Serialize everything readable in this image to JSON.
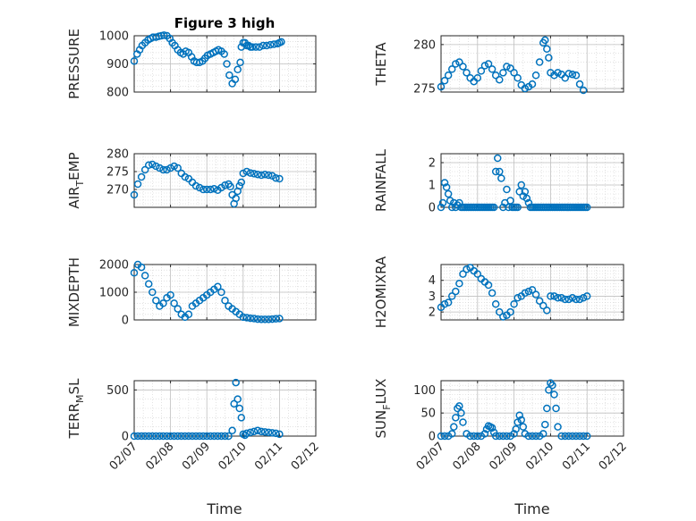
{
  "figure": {
    "title": "Figure 3 high",
    "xlabel": "Time"
  },
  "colors": {
    "marker": "#0072BD",
    "axis": "#262626",
    "grid": "#bfbfbf"
  },
  "chart_data": [
    {
      "type": "scatter",
      "ylabel": "PRESSURE",
      "ylim": [
        800,
        1000
      ],
      "yticks": [
        800,
        900,
        1000
      ],
      "xlim": [
        0,
        5
      ],
      "xtick_labels": [
        "02/07",
        "02/08",
        "02/09",
        "02/10",
        "02/11",
        "02/12"
      ],
      "grid": true,
      "minor_grid": true,
      "x": [
        0.0,
        0.08,
        0.15,
        0.22,
        0.3,
        0.38,
        0.45,
        0.52,
        0.6,
        0.68,
        0.75,
        0.82,
        0.9,
        0.98,
        1.05,
        1.12,
        1.2,
        1.28,
        1.35,
        1.42,
        1.5,
        1.58,
        1.65,
        1.72,
        1.8,
        1.88,
        1.95,
        2.02,
        2.1,
        2.18,
        2.25,
        2.32,
        2.4,
        2.48,
        2.55,
        2.62,
        2.7,
        2.78,
        2.85,
        2.92,
        2.95,
        3.0,
        3.05,
        3.1,
        3.15,
        3.2,
        3.25,
        3.35,
        3.45,
        3.55,
        3.65,
        3.75,
        3.85,
        3.95,
        4.0,
        4.05
      ],
      "y": [
        910,
        935,
        950,
        965,
        975,
        985,
        990,
        995,
        995,
        998,
        1000,
        1002,
        1000,
        990,
        975,
        965,
        950,
        940,
        935,
        945,
        940,
        925,
        910,
        905,
        905,
        910,
        920,
        930,
        935,
        940,
        945,
        950,
        945,
        935,
        900,
        860,
        830,
        845,
        880,
        905,
        960,
        975,
        975,
        965,
        965,
        960,
        960,
        960,
        960,
        965,
        965,
        968,
        970,
        972,
        975,
        978
      ]
    },
    {
      "type": "scatter",
      "ylabel": "THETA",
      "ylim": [
        274.6,
        281
      ],
      "yticks": [
        275,
        280
      ],
      "xlim": [
        0,
        5
      ],
      "xtick_labels": [
        "02/07",
        "02/08",
        "02/09",
        "02/10",
        "02/11",
        "02/12"
      ],
      "grid": true,
      "minor_grid": true,
      "x": [
        0.0,
        0.1,
        0.2,
        0.3,
        0.4,
        0.5,
        0.6,
        0.7,
        0.8,
        0.9,
        1.0,
        1.1,
        1.2,
        1.3,
        1.4,
        1.5,
        1.6,
        1.7,
        1.8,
        1.9,
        2.0,
        2.1,
        2.2,
        2.3,
        2.4,
        2.5,
        2.6,
        2.7,
        2.8,
        2.85,
        2.9,
        2.95,
        3.0,
        3.1,
        3.2,
        3.3,
        3.4,
        3.5,
        3.6,
        3.7,
        3.8,
        3.9
      ],
      "y": [
        275.2,
        275.9,
        276.5,
        277.2,
        277.8,
        278.0,
        277.5,
        276.8,
        276.2,
        275.8,
        276.2,
        277.0,
        277.6,
        277.8,
        277.2,
        276.5,
        276.0,
        276.8,
        277.5,
        277.3,
        276.8,
        276.2,
        275.4,
        275.0,
        275.2,
        275.5,
        276.5,
        278.0,
        280.2,
        280.5,
        279.5,
        278.5,
        276.8,
        276.5,
        276.8,
        276.6,
        276.2,
        276.7,
        276.6,
        276.5,
        275.5,
        274.8
      ]
    },
    {
      "type": "scatter",
      "ylabel": "AIR_TEMP",
      "ylim": [
        265,
        280
      ],
      "yticks": [
        270,
        275,
        280
      ],
      "xlim": [
        0,
        5
      ],
      "xtick_labels": [
        "02/07",
        "02/08",
        "02/09",
        "02/10",
        "02/11",
        "02/12"
      ],
      "grid": true,
      "minor_grid": true,
      "x": [
        0.0,
        0.1,
        0.2,
        0.3,
        0.4,
        0.5,
        0.6,
        0.7,
        0.8,
        0.9,
        1.0,
        1.1,
        1.2,
        1.3,
        1.4,
        1.5,
        1.6,
        1.7,
        1.8,
        1.9,
        2.0,
        2.1,
        2.2,
        2.3,
        2.4,
        2.5,
        2.6,
        2.65,
        2.7,
        2.75,
        2.8,
        2.85,
        2.9,
        2.95,
        3.0,
        3.1,
        3.2,
        3.3,
        3.4,
        3.5,
        3.6,
        3.7,
        3.8,
        3.9,
        4.0
      ],
      "y": [
        268.5,
        271.5,
        273.5,
        275.5,
        276.8,
        277.0,
        276.5,
        276.0,
        275.5,
        275.5,
        276.0,
        276.5,
        276.0,
        274.5,
        273.5,
        273.0,
        272.0,
        271.0,
        270.5,
        270.0,
        270.0,
        270.0,
        270.2,
        269.8,
        270.5,
        271.2,
        271.5,
        270.8,
        268.5,
        266.0,
        267.5,
        269.5,
        271.0,
        272.0,
        274.5,
        275.0,
        274.6,
        274.4,
        274.2,
        274.0,
        274.2,
        274.0,
        273.8,
        273.2,
        273.0
      ]
    },
    {
      "type": "scatter",
      "ylabel": "RAINFALL",
      "ylim": [
        0,
        2.4
      ],
      "yticks": [
        0,
        1,
        2
      ],
      "xlim": [
        0,
        5
      ],
      "xtick_labels": [
        "02/07",
        "02/08",
        "02/09",
        "02/10",
        "02/11",
        "02/12"
      ],
      "grid": true,
      "minor_grid": true,
      "x": [
        0.0,
        0.05,
        0.1,
        0.15,
        0.2,
        0.25,
        0.3,
        0.35,
        0.4,
        0.45,
        0.5,
        0.55,
        0.6,
        0.65,
        0.7,
        0.75,
        0.8,
        0.85,
        0.9,
        0.95,
        1.0,
        1.05,
        1.1,
        1.15,
        1.2,
        1.25,
        1.3,
        1.35,
        1.4,
        1.45,
        1.5,
        1.55,
        1.6,
        1.65,
        1.7,
        1.75,
        1.8,
        1.85,
        1.9,
        1.95,
        2.0,
        2.05,
        2.1,
        2.15,
        2.2,
        2.25,
        2.3,
        2.35,
        2.4,
        2.45,
        2.5,
        2.55,
        2.6,
        2.65,
        2.7,
        2.75,
        2.8,
        2.85,
        2.9,
        2.95,
        3.0,
        3.05,
        3.1,
        3.15,
        3.2,
        3.25,
        3.3,
        3.35,
        3.4,
        3.45,
        3.5,
        3.55,
        3.6,
        3.65,
        3.7,
        3.75,
        3.8,
        3.85,
        3.9,
        3.95,
        4.0
      ],
      "y": [
        0.0,
        0.2,
        1.1,
        0.9,
        0.6,
        0.3,
        0.0,
        0.2,
        0.0,
        0.1,
        0.2,
        0.0,
        0.0,
        0.0,
        0.0,
        0.0,
        0.0,
        0.0,
        0.0,
        0.0,
        0.0,
        0.0,
        0.0,
        0.0,
        0.0,
        0.0,
        0.0,
        0.0,
        0.0,
        0.0,
        1.6,
        2.2,
        1.6,
        1.3,
        0.0,
        0.2,
        0.8,
        0.0,
        0.3,
        0.0,
        0.0,
        0.0,
        0.0,
        0.7,
        1.0,
        0.5,
        0.7,
        0.4,
        0.2,
        0.0,
        0.0,
        0.0,
        0.0,
        0.0,
        0.0,
        0.0,
        0.0,
        0.0,
        0.0,
        0.0,
        0.0,
        0.0,
        0.0,
        0.0,
        0.0,
        0.0,
        0.0,
        0.0,
        0.0,
        0.0,
        0.0,
        0.0,
        0.0,
        0.0,
        0.0,
        0.0,
        0.0,
        0.0,
        0.0,
        0.0,
        0.0
      ]
    },
    {
      "type": "scatter",
      "ylabel": "MIXDEPTH",
      "ylim": [
        0,
        2000
      ],
      "yticks": [
        0,
        1000,
        2000
      ],
      "xlim": [
        0,
        5
      ],
      "xtick_labels": [
        "02/07",
        "02/08",
        "02/09",
        "02/10",
        "02/11",
        "02/12"
      ],
      "grid": true,
      "minor_grid": true,
      "x": [
        0.0,
        0.1,
        0.2,
        0.3,
        0.4,
        0.5,
        0.6,
        0.7,
        0.8,
        0.9,
        1.0,
        1.1,
        1.2,
        1.3,
        1.4,
        1.5,
        1.6,
        1.7,
        1.8,
        1.9,
        2.0,
        2.1,
        2.2,
        2.3,
        2.4,
        2.5,
        2.6,
        2.7,
        2.8,
        2.9,
        3.0,
        3.1,
        3.2,
        3.3,
        3.4,
        3.5,
        3.6,
        3.7,
        3.8,
        3.9,
        4.0
      ],
      "y": [
        1700,
        2000,
        1900,
        1600,
        1300,
        1000,
        700,
        500,
        600,
        800,
        900,
        600,
        400,
        200,
        100,
        200,
        500,
        600,
        700,
        800,
        900,
        1000,
        1100,
        1200,
        1000,
        700,
        500,
        400,
        300,
        200,
        100,
        80,
        60,
        50,
        30,
        20,
        20,
        20,
        30,
        40,
        50
      ]
    },
    {
      "type": "scatter",
      "ylabel": "H2OMIXRA",
      "ylim": [
        1.5,
        5
      ],
      "yticks": [
        2,
        3,
        4
      ],
      "xlim": [
        0,
        5
      ],
      "xtick_labels": [
        "02/07",
        "02/08",
        "02/09",
        "02/10",
        "02/11",
        "02/12"
      ],
      "grid": true,
      "minor_grid": true,
      "x": [
        0.0,
        0.1,
        0.2,
        0.3,
        0.4,
        0.5,
        0.6,
        0.7,
        0.8,
        0.9,
        1.0,
        1.1,
        1.2,
        1.3,
        1.4,
        1.5,
        1.6,
        1.7,
        1.8,
        1.9,
        2.0,
        2.1,
        2.2,
        2.3,
        2.4,
        2.5,
        2.6,
        2.7,
        2.8,
        2.9,
        3.0,
        3.1,
        3.2,
        3.3,
        3.4,
        3.5,
        3.6,
        3.7,
        3.8,
        3.9,
        4.0
      ],
      "y": [
        2.3,
        2.5,
        2.6,
        3.0,
        3.3,
        3.8,
        4.4,
        4.7,
        4.8,
        4.6,
        4.4,
        4.1,
        3.9,
        3.7,
        3.2,
        2.5,
        2.0,
        1.7,
        1.8,
        2.0,
        2.5,
        2.9,
        3.0,
        3.2,
        3.3,
        3.4,
        3.1,
        2.7,
        2.4,
        2.1,
        3.0,
        3.0,
        2.9,
        2.9,
        2.8,
        2.8,
        2.9,
        2.8,
        2.8,
        2.9,
        3.0
      ]
    },
    {
      "type": "scatter",
      "ylabel": "TERR_MSL",
      "ylim": [
        0,
        600
      ],
      "yticks": [
        0,
        500
      ],
      "xlim": [
        0,
        5
      ],
      "xtick_labels": [
        "02/07",
        "02/08",
        "02/09",
        "02/10",
        "02/11",
        "02/12"
      ],
      "grid": true,
      "minor_grid": true,
      "x": [
        0.0,
        0.1,
        0.2,
        0.3,
        0.4,
        0.5,
        0.6,
        0.7,
        0.8,
        0.9,
        1.0,
        1.1,
        1.2,
        1.3,
        1.4,
        1.5,
        1.6,
        1.7,
        1.8,
        1.9,
        2.0,
        2.1,
        2.2,
        2.3,
        2.4,
        2.5,
        2.6,
        2.7,
        2.75,
        2.8,
        2.85,
        2.9,
        2.95,
        3.0,
        3.05,
        3.1,
        3.2,
        3.3,
        3.4,
        3.5,
        3.6,
        3.7,
        3.8,
        3.9,
        4.0
      ],
      "y": [
        0,
        0,
        0,
        0,
        0,
        0,
        0,
        0,
        0,
        0,
        0,
        0,
        0,
        0,
        0,
        0,
        0,
        0,
        0,
        0,
        0,
        0,
        0,
        0,
        0,
        0,
        0,
        60,
        350,
        580,
        400,
        300,
        200,
        20,
        10,
        30,
        40,
        50,
        60,
        50,
        45,
        40,
        35,
        30,
        20
      ]
    },
    {
      "type": "scatter",
      "ylabel": "SUN_FLUX",
      "ylim": [
        0,
        120
      ],
      "yticks": [
        0,
        50,
        100
      ],
      "xlim": [
        0,
        5
      ],
      "xtick_labels": [
        "02/07",
        "02/08",
        "02/09",
        "02/10",
        "02/11",
        "02/12"
      ],
      "grid": true,
      "minor_grid": true,
      "x": [
        0.0,
        0.1,
        0.2,
        0.3,
        0.35,
        0.4,
        0.45,
        0.5,
        0.55,
        0.6,
        0.7,
        0.8,
        0.9,
        1.0,
        1.1,
        1.2,
        1.25,
        1.3,
        1.35,
        1.4,
        1.45,
        1.5,
        1.6,
        1.7,
        1.8,
        1.9,
        2.0,
        2.05,
        2.1,
        2.15,
        2.2,
        2.25,
        2.3,
        2.4,
        2.5,
        2.6,
        2.7,
        2.8,
        2.85,
        2.9,
        2.95,
        3.0,
        3.05,
        3.1,
        3.15,
        3.2,
        3.3,
        3.4,
        3.5,
        3.6,
        3.7,
        3.8,
        3.9,
        4.0
      ],
      "y": [
        0,
        0,
        0,
        5,
        20,
        40,
        60,
        65,
        50,
        30,
        5,
        0,
        0,
        0,
        0,
        5,
        15,
        22,
        20,
        18,
        8,
        0,
        0,
        0,
        0,
        0,
        5,
        15,
        30,
        45,
        35,
        20,
        5,
        0,
        0,
        0,
        0,
        5,
        25,
        60,
        100,
        115,
        110,
        90,
        60,
        20,
        0,
        0,
        0,
        0,
        0,
        0,
        0,
        0
      ]
    }
  ]
}
